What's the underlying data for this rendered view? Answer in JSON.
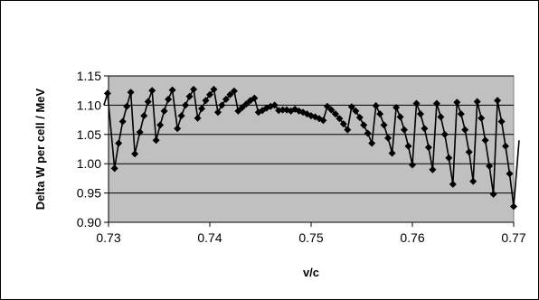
{
  "chart_data": {
    "type": "scatter",
    "title": "",
    "xlabel": "v/c",
    "ylabel": "Delta W per cell / MeV",
    "xlim": [
      0.73,
      0.77
    ],
    "ylim": [
      0.9,
      1.15
    ],
    "x_ticks": [
      "0.73",
      "0.74",
      "0.75",
      "0.76",
      "0.77"
    ],
    "y_ticks": [
      "0.90",
      "0.95",
      "1.00",
      "1.05",
      "1.10",
      "1.15"
    ],
    "grid": "horizontal",
    "legend": "none",
    "plot_background": "#c0c0c0",
    "series_color": "#000000",
    "marker": "diamond",
    "series": [
      {
        "x": [
          0.7299,
          0.7306,
          0.731,
          0.7314,
          0.7318,
          0.7322,
          0.7326,
          0.7331,
          0.7335,
          0.7339,
          0.7343,
          0.7347,
          0.7351,
          0.7355,
          0.7359,
          0.7363,
          0.7368,
          0.7372,
          0.7376,
          0.738,
          0.7384,
          0.7388,
          0.7392,
          0.7396,
          0.74,
          0.7404,
          0.7408,
          0.7412,
          0.7416,
          0.742,
          0.7424,
          0.7428,
          0.7432,
          0.7436,
          0.744,
          0.7444,
          0.7448,
          0.7452,
          0.7456,
          0.746,
          0.7464,
          0.7468,
          0.7472,
          0.7476,
          0.748,
          0.7484,
          0.7488,
          0.7492,
          0.7496,
          0.75,
          0.7504,
          0.7508,
          0.7512,
          0.7516,
          0.752,
          0.7524,
          0.7528,
          0.7532,
          0.7536,
          0.754,
          0.7544,
          0.7548,
          0.7552,
          0.7556,
          0.756,
          0.7564,
          0.7568,
          0.7572,
          0.7576,
          0.758,
          0.7584,
          0.7588,
          0.7592,
          0.7596,
          0.76,
          0.7604,
          0.7608,
          0.7612,
          0.7616,
          0.762,
          0.7624,
          0.7628,
          0.7632,
          0.7636,
          0.764,
          0.7644,
          0.7648,
          0.7652,
          0.7656,
          0.766,
          0.7664,
          0.7668,
          0.7672,
          0.7676,
          0.768,
          0.7684,
          0.7688,
          0.7692,
          0.7696,
          0.77
        ],
        "y": [
          1.12,
          0.992,
          1.035,
          1.072,
          1.098,
          1.122,
          1.017,
          1.054,
          1.082,
          1.106,
          1.125,
          1.04,
          1.066,
          1.09,
          1.11,
          1.126,
          1.06,
          1.082,
          1.1,
          1.115,
          1.127,
          1.078,
          1.094,
          1.108,
          1.118,
          1.127,
          1.088,
          1.1,
          1.11,
          1.118,
          1.124,
          1.09,
          1.096,
          1.102,
          1.108,
          1.112,
          1.088,
          1.091,
          1.095,
          1.098,
          1.1,
          1.091,
          1.092,
          1.092,
          1.09,
          1.093,
          1.09,
          1.088,
          1.085,
          1.082,
          1.08,
          1.077,
          1.074,
          1.098,
          1.092,
          1.085,
          1.077,
          1.068,
          1.058,
          1.097,
          1.09,
          1.079,
          1.066,
          1.052,
          1.035,
          1.099,
          1.085,
          1.066,
          1.044,
          1.018,
          1.096,
          1.08,
          1.058,
          1.03,
          0.998,
          1.103,
          1.085,
          1.06,
          1.028,
          0.99,
          1.103,
          1.08,
          1.05,
          1.01,
          0.965,
          1.105,
          1.085,
          1.058,
          1.02,
          0.97,
          1.106,
          1.078,
          1.04,
          0.996,
          0.948,
          1.108,
          1.072,
          1.03,
          0.983,
          0.927
        ]
      }
    ]
  }
}
